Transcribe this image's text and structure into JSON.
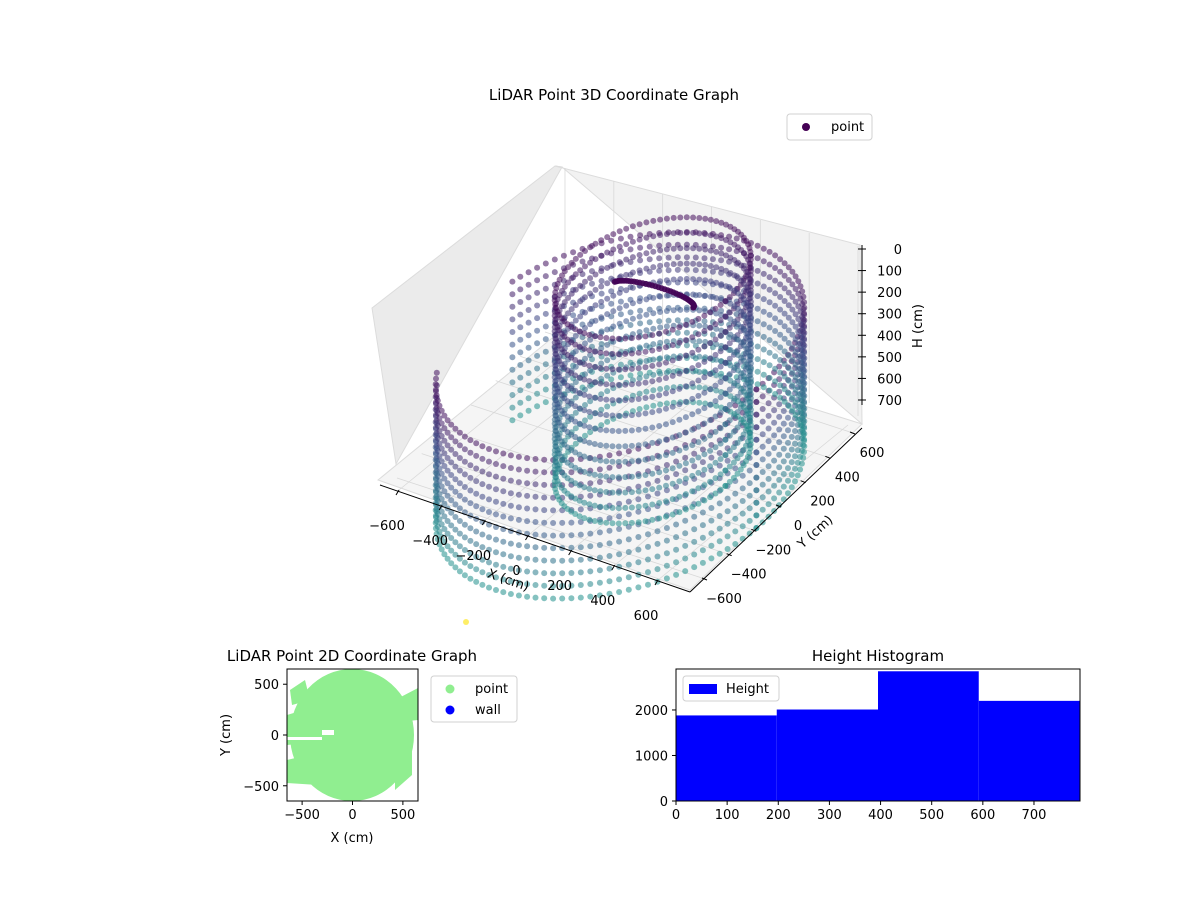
{
  "colors": {
    "viridis_stops": [
      "#440154",
      "#3b528b",
      "#21918c",
      "#5ec962",
      "#fde725"
    ],
    "point_2d": "#90ee90",
    "wall_2d": "#0000ff",
    "hist_bar": "#0000ff",
    "legend_3d_marker": "#440154"
  },
  "chart_data": [
    {
      "type": "scatter",
      "title": "LiDAR Point 3D Coordinate Graph",
      "xlabel": "X (cm)",
      "ylabel": "Y (cm)",
      "zlabel": "H (cm)",
      "xlim": [
        -700,
        700
      ],
      "ylim": [
        -700,
        700
      ],
      "zlim": [
        0,
        780
      ],
      "x_ticks": [
        "−600",
        "−400",
        "−200",
        "0",
        "200",
        "400",
        "600"
      ],
      "y_ticks": [
        "−600",
        "−400",
        "−200",
        "0",
        "200",
        "400",
        "600"
      ],
      "z_ticks": [
        "0",
        "100",
        "200",
        "300",
        "400",
        "500",
        "600",
        "700"
      ],
      "z_tick_values": [
        0,
        100,
        200,
        300,
        400,
        500,
        600,
        700
      ],
      "legend": [
        "point"
      ],
      "legend_position": "upper-right",
      "grid": true,
      "colormap": "viridis"
    },
    {
      "type": "scatter",
      "title": "LiDAR Point 2D Coordinate Graph",
      "xlabel": "X (cm)",
      "ylabel": "Y (cm)",
      "xlim": [
        -650,
        650
      ],
      "ylim": [
        -650,
        650
      ],
      "x_ticks": [
        -500,
        0,
        500
      ],
      "y_ticks": [
        -500,
        0,
        500
      ],
      "series": [
        {
          "name": "point",
          "color": "#90ee90"
        },
        {
          "name": "wall",
          "color": "#0000ff"
        }
      ],
      "legend_position": "outside-upper-right",
      "grid": false
    },
    {
      "type": "bar",
      "title": "Height Histogram",
      "xlim": [
        0,
        790
      ],
      "ylim": [
        0,
        2900
      ],
      "x_ticks": [
        0,
        100,
        200,
        300,
        400,
        500,
        600,
        700
      ],
      "y_ticks": [
        0,
        1000,
        2000
      ],
      "bins": [
        [
          0,
          197
        ],
        [
          197,
          395
        ],
        [
          395,
          592
        ],
        [
          592,
          790
        ]
      ],
      "values": [
        1880,
        2010,
        2850,
        2200
      ],
      "series": [
        {
          "name": "Height",
          "color": "#0000ff"
        }
      ],
      "legend_position": "upper-left",
      "grid": false
    }
  ]
}
